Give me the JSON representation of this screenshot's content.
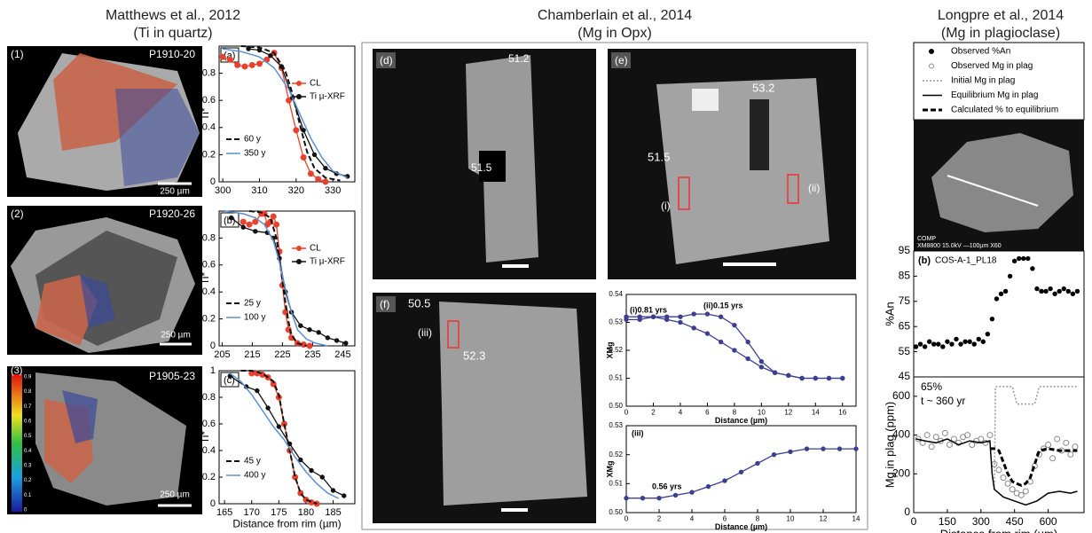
{
  "left": {
    "title": "Matthews et al., 2012",
    "subtitle": "(Ti in quartz)",
    "images": [
      {
        "label": "(1)",
        "sample": "P1910-20",
        "scale": "250 µm"
      },
      {
        "label": "(2)",
        "sample": "P1920-26",
        "scale": "250 µm"
      },
      {
        "label": "(3)",
        "sample": "P1905-23",
        "scale": "250 µm"
      }
    ],
    "colorbar_ticks": [
      0,
      0.1,
      0.2,
      0.3,
      0.4,
      0.5,
      0.6,
      0.7,
      0.8,
      0.9
    ]
  },
  "middle": {
    "title": "Chamberlain et al., 2014",
    "subtitle": "(Mg in Opx)",
    "images": [
      {
        "label": "(d)",
        "annotations": [
          "51.2",
          "51.5"
        ]
      },
      {
        "label": "(e)",
        "annotations": [
          "53.2",
          "51.5",
          "(i)",
          "(ii)"
        ]
      },
      {
        "label": "(f)",
        "annotations": [
          "50.5",
          "(iii)",
          "52.3"
        ]
      }
    ]
  },
  "right": {
    "title": "Longpre et al., 2014",
    "subtitle": "(Mg in plagioclase)",
    "image_caption": [
      "COMP",
      "XM8800  15.0kV   —100µm   X60"
    ]
  },
  "chart_data": [
    {
      "type": "line",
      "label": "(a)",
      "ylabel": "Ti*",
      "xlim": [
        299,
        336
      ],
      "ylim": [
        0,
        1
      ],
      "xticks": [
        300,
        310,
        320,
        330
      ],
      "yticks": [
        0,
        0.2,
        0.4,
        0.6,
        0.8
      ],
      "series": [
        {
          "name": "CL",
          "color": "#e8412c",
          "style": "line+markers",
          "x": [
            300,
            302,
            304,
            306,
            308,
            310,
            312,
            314,
            316,
            318,
            320,
            322,
            324,
            326,
            328
          ],
          "values": [
            0.92,
            0.9,
            0.86,
            0.85,
            0.86,
            0.87,
            0.9,
            0.95,
            0.84,
            0.6,
            0.38,
            0.18,
            0.06,
            0.02,
            0.0
          ]
        },
        {
          "name": "Ti µ-XRF",
          "color": "#111111",
          "style": "line+markers",
          "x": [
            307,
            310,
            313,
            316,
            319,
            322,
            325,
            328,
            331,
            334
          ],
          "values": [
            0.98,
            0.97,
            0.93,
            0.85,
            0.62,
            0.38,
            0.2,
            0.1,
            0.06,
            0.04
          ]
        },
        {
          "name": "60 y",
          "color": "#111111",
          "style": "dashed",
          "x": [
            305,
            310,
            314,
            317,
            319,
            321,
            323,
            325,
            328,
            332
          ],
          "values": [
            1,
            0.99,
            0.95,
            0.82,
            0.65,
            0.42,
            0.22,
            0.1,
            0.03,
            0.01
          ]
        },
        {
          "name": "350 y",
          "color": "#5b8fd0",
          "style": "line",
          "x": [
            300,
            305,
            310,
            314,
            318,
            321,
            324,
            327,
            330,
            334
          ],
          "values": [
            0.98,
            0.96,
            0.92,
            0.84,
            0.68,
            0.5,
            0.32,
            0.18,
            0.08,
            0.03
          ]
        }
      ]
    },
    {
      "type": "line",
      "label": "(b)",
      "ylabel": "Ti*",
      "xlim": [
        204,
        249
      ],
      "ylim": [
        0,
        1
      ],
      "xticks": [
        205,
        215,
        225,
        235,
        245
      ],
      "yticks": [
        0,
        0.2,
        0.4,
        0.6,
        0.8
      ],
      "series": [
        {
          "name": "CL",
          "color": "#e8412c",
          "style": "line+markers",
          "x": [
            212,
            214,
            216,
            218,
            219,
            220,
            221,
            222,
            223,
            224,
            225,
            226,
            227,
            228,
            230,
            232,
            234
          ],
          "values": [
            0.92,
            0.9,
            0.92,
            0.98,
            0.98,
            0.9,
            0.92,
            0.96,
            0.9,
            0.7,
            0.45,
            0.25,
            0.12,
            0.06,
            0.02,
            0.01,
            0.0
          ]
        },
        {
          "name": "Ti µ-XRF",
          "color": "#111111",
          "style": "line+markers",
          "x": [
            208,
            212,
            216,
            220,
            222,
            224,
            226,
            228,
            231,
            234,
            237,
            240,
            243,
            246
          ],
          "values": [
            0.95,
            0.88,
            0.85,
            0.84,
            0.8,
            0.65,
            0.4,
            0.25,
            0.15,
            0.12,
            0.1,
            0.06,
            0.04,
            0.02
          ]
        },
        {
          "name": "25 y",
          "color": "#111111",
          "style": "dashed",
          "x": [
            214,
            218,
            221,
            223,
            224,
            225,
            226,
            227,
            228,
            230,
            233
          ],
          "values": [
            1,
            0.99,
            0.95,
            0.8,
            0.65,
            0.48,
            0.32,
            0.18,
            0.08,
            0.02,
            0.0
          ]
        },
        {
          "name": "100 y",
          "color": "#5b8fd0",
          "style": "line",
          "x": [
            206,
            212,
            216,
            219,
            222,
            224,
            226,
            228,
            230,
            233,
            236,
            240
          ],
          "values": [
            1,
            0.98,
            0.95,
            0.9,
            0.78,
            0.62,
            0.42,
            0.25,
            0.12,
            0.05,
            0.02,
            0.0
          ]
        }
      ]
    },
    {
      "type": "line",
      "label": "(c)",
      "ylabel": "Ti*",
      "xlabel": "Distance from rim (µm)",
      "xlim": [
        164,
        189
      ],
      "ylim": [
        0,
        1
      ],
      "xticks": [
        165,
        170,
        175,
        180,
        185
      ],
      "yticks": [
        0,
        0.2,
        0.4,
        0.6,
        0.8,
        1
      ],
      "series": [
        {
          "color": "#e8412c",
          "style": "line+markers",
          "x": [
            170,
            171,
            172,
            173,
            174,
            175,
            176,
            177,
            178,
            179,
            180,
            181,
            182
          ],
          "values": [
            0.98,
            0.98,
            0.97,
            0.95,
            0.9,
            0.8,
            0.6,
            0.4,
            0.2,
            0.08,
            0.03,
            0.01,
            0.0
          ]
        },
        {
          "color": "#111111",
          "style": "line+markers",
          "x": [
            166,
            169,
            171,
            173,
            175,
            177,
            179,
            181,
            183,
            185,
            187
          ],
          "values": [
            0.96,
            0.88,
            0.85,
            0.72,
            0.58,
            0.45,
            0.33,
            0.25,
            0.2,
            0.1,
            0.06
          ]
        },
        {
          "name": "45 y",
          "color": "#111111",
          "style": "dashed",
          "x": [
            168,
            170,
            172,
            174,
            175,
            176,
            177,
            178,
            179,
            180,
            182
          ],
          "values": [
            1,
            1,
            0.98,
            0.92,
            0.82,
            0.6,
            0.4,
            0.2,
            0.08,
            0.03,
            0.0
          ]
        },
        {
          "name": "400 y",
          "color": "#5b8fd0",
          "style": "line",
          "x": [
            166,
            168,
            170,
            172,
            174,
            176,
            178,
            180,
            182,
            184,
            186
          ],
          "values": [
            0.98,
            0.92,
            0.82,
            0.7,
            0.58,
            0.48,
            0.35,
            0.24,
            0.15,
            0.08,
            0.04
          ]
        }
      ]
    },
    {
      "type": "line",
      "ylabel": "XMg",
      "xlabel": "Distance (µm)",
      "xlim": [
        0,
        17
      ],
      "ylim": [
        0.5,
        0.54
      ],
      "xticks": [
        0,
        2,
        4,
        6,
        8,
        10,
        12,
        14,
        16
      ],
      "yticks": [
        {
          "value": 0.5,
          "label": "0.50"
        },
        0.51,
        0.52,
        0.53,
        0.54
      ],
      "annotations": [
        "(i)0.81 yrs",
        "(ii)0.15 yrs"
      ],
      "series": [
        {
          "color": "#3b3f8f",
          "style": "line+markers",
          "x": [
            0,
            1,
            2,
            3,
            4,
            5,
            6,
            7,
            8,
            9,
            10,
            11,
            12,
            13,
            14,
            15,
            16
          ],
          "values": [
            0.532,
            0.532,
            0.532,
            0.531,
            0.53,
            0.528,
            0.526,
            0.523,
            0.52,
            0.517,
            0.514,
            0.512,
            0.511,
            0.51,
            0.51,
            0.51,
            0.51
          ]
        },
        {
          "color": "#3b3f8f",
          "style": "line+markers",
          "x": [
            0,
            1,
            2,
            3,
            4,
            5,
            6,
            7,
            8,
            9,
            10,
            11,
            12,
            13,
            14,
            15,
            16
          ],
          "values": [
            0.531,
            0.531,
            0.532,
            0.532,
            0.532,
            0.533,
            0.533,
            0.532,
            0.529,
            0.523,
            0.516,
            0.512,
            0.511,
            0.51,
            0.51,
            0.51,
            0.51
          ]
        }
      ]
    },
    {
      "type": "line",
      "ylabel": "XMg",
      "xlabel": "Distance (µm)",
      "xlim": [
        0,
        14
      ],
      "ylim": [
        0.5,
        0.53
      ],
      "xticks": [
        0,
        2,
        4,
        6,
        8,
        10,
        12,
        14
      ],
      "yticks": [
        {
          "value": 0.5,
          "label": "0.50"
        },
        0.51,
        0.52,
        0.53
      ],
      "annotations": [
        "(iii)",
        "0.56 yrs"
      ],
      "series": [
        {
          "color": "#3b3f8f",
          "style": "line+markers",
          "x": [
            0,
            1,
            2,
            3,
            4,
            5,
            6,
            7,
            8,
            9,
            10,
            11,
            12,
            13,
            14
          ],
          "values": [
            0.505,
            0.505,
            0.505,
            0.506,
            0.507,
            0.509,
            0.511,
            0.514,
            0.517,
            0.52,
            0.521,
            0.522,
            0.522,
            0.522,
            0.522
          ]
        }
      ]
    },
    {
      "type": "scatter",
      "label": "(b)",
      "title": "COS-A-1_PL18",
      "ylabel": "%An",
      "xlim": [
        0,
        760
      ],
      "ylim": [
        45,
        95
      ],
      "yticks": [
        45,
        55,
        65,
        75,
        85,
        95
      ],
      "series": [
        {
          "name": "Observed %An",
          "color": "#000000",
          "style": "markers",
          "x": [
            10,
            30,
            50,
            70,
            90,
            110,
            130,
            150,
            170,
            190,
            210,
            230,
            250,
            270,
            290,
            310,
            330,
            350,
            370,
            390,
            410,
            430,
            450,
            470,
            490,
            510,
            530,
            550,
            570,
            590,
            610,
            630,
            650,
            670,
            690,
            710,
            730
          ],
          "values": [
            57,
            58,
            57,
            59,
            58,
            58,
            57,
            59,
            58,
            60,
            58,
            59,
            59,
            58,
            60,
            59,
            62,
            68,
            76,
            78,
            79,
            85,
            91,
            92,
            92,
            92,
            88,
            80,
            79,
            79,
            80,
            78,
            79,
            80,
            79,
            78,
            79
          ]
        }
      ]
    },
    {
      "type": "line",
      "ylabel": "Mg in plag (ppm)",
      "xlabel": "Distance from rim (µm)",
      "xlim": [
        0,
        760
      ],
      "ylim": [
        0,
        700
      ],
      "xticks": [
        0,
        150,
        300,
        450,
        600
      ],
      "yticks": [
        0,
        200,
        400,
        600
      ],
      "annotations": [
        "65%",
        "t ~ 360 yr"
      ],
      "series": [
        {
          "name": "Observed Mg in plag",
          "color": "#888888",
          "style": "open-markers",
          "x": [
            20,
            40,
            60,
            80,
            100,
            120,
            140,
            160,
            180,
            200,
            220,
            240,
            260,
            280,
            300,
            320,
            340,
            360,
            380,
            400,
            420,
            440,
            460,
            480,
            500,
            520,
            540,
            560,
            580,
            600,
            620,
            640,
            660,
            680,
            700,
            720
          ],
          "values": [
            380,
            360,
            400,
            340,
            390,
            370,
            410,
            350,
            380,
            360,
            390,
            400,
            350,
            370,
            380,
            360,
            400,
            250,
            220,
            180,
            150,
            120,
            100,
            90,
            110,
            160,
            240,
            300,
            330,
            350,
            280,
            380,
            320,
            360,
            300,
            340
          ]
        },
        {
          "name": "Initial Mg in plag",
          "color": "#999999",
          "style": "dotted",
          "x": [
            360,
            365,
            440,
            460,
            540,
            560,
            730
          ],
          "values": [
            120,
            650,
            650,
            560,
            560,
            650,
            650
          ]
        },
        {
          "name": "Equilibrium Mg in plag",
          "color": "#000000",
          "style": "line",
          "x": [
            10,
            50,
            100,
            150,
            200,
            250,
            300,
            340,
            350,
            360,
            400,
            450,
            500,
            550,
            600,
            650,
            700,
            730
          ],
          "values": [
            380,
            370,
            360,
            380,
            350,
            370,
            360,
            370,
            200,
            120,
            80,
            60,
            40,
            60,
            100,
            110,
            100,
            110
          ]
        },
        {
          "name": "Calculated % to equilibrium",
          "color": "#000000",
          "style": "dashed",
          "x": [
            340,
            360,
            380,
            400,
            420,
            440,
            460,
            480,
            500,
            520,
            540,
            560,
            600,
            650,
            700,
            730
          ],
          "values": [
            330,
            330,
            320,
            260,
            200,
            160,
            150,
            140,
            150,
            180,
            250,
            320,
            330,
            320,
            320,
            320
          ]
        }
      ]
    }
  ]
}
